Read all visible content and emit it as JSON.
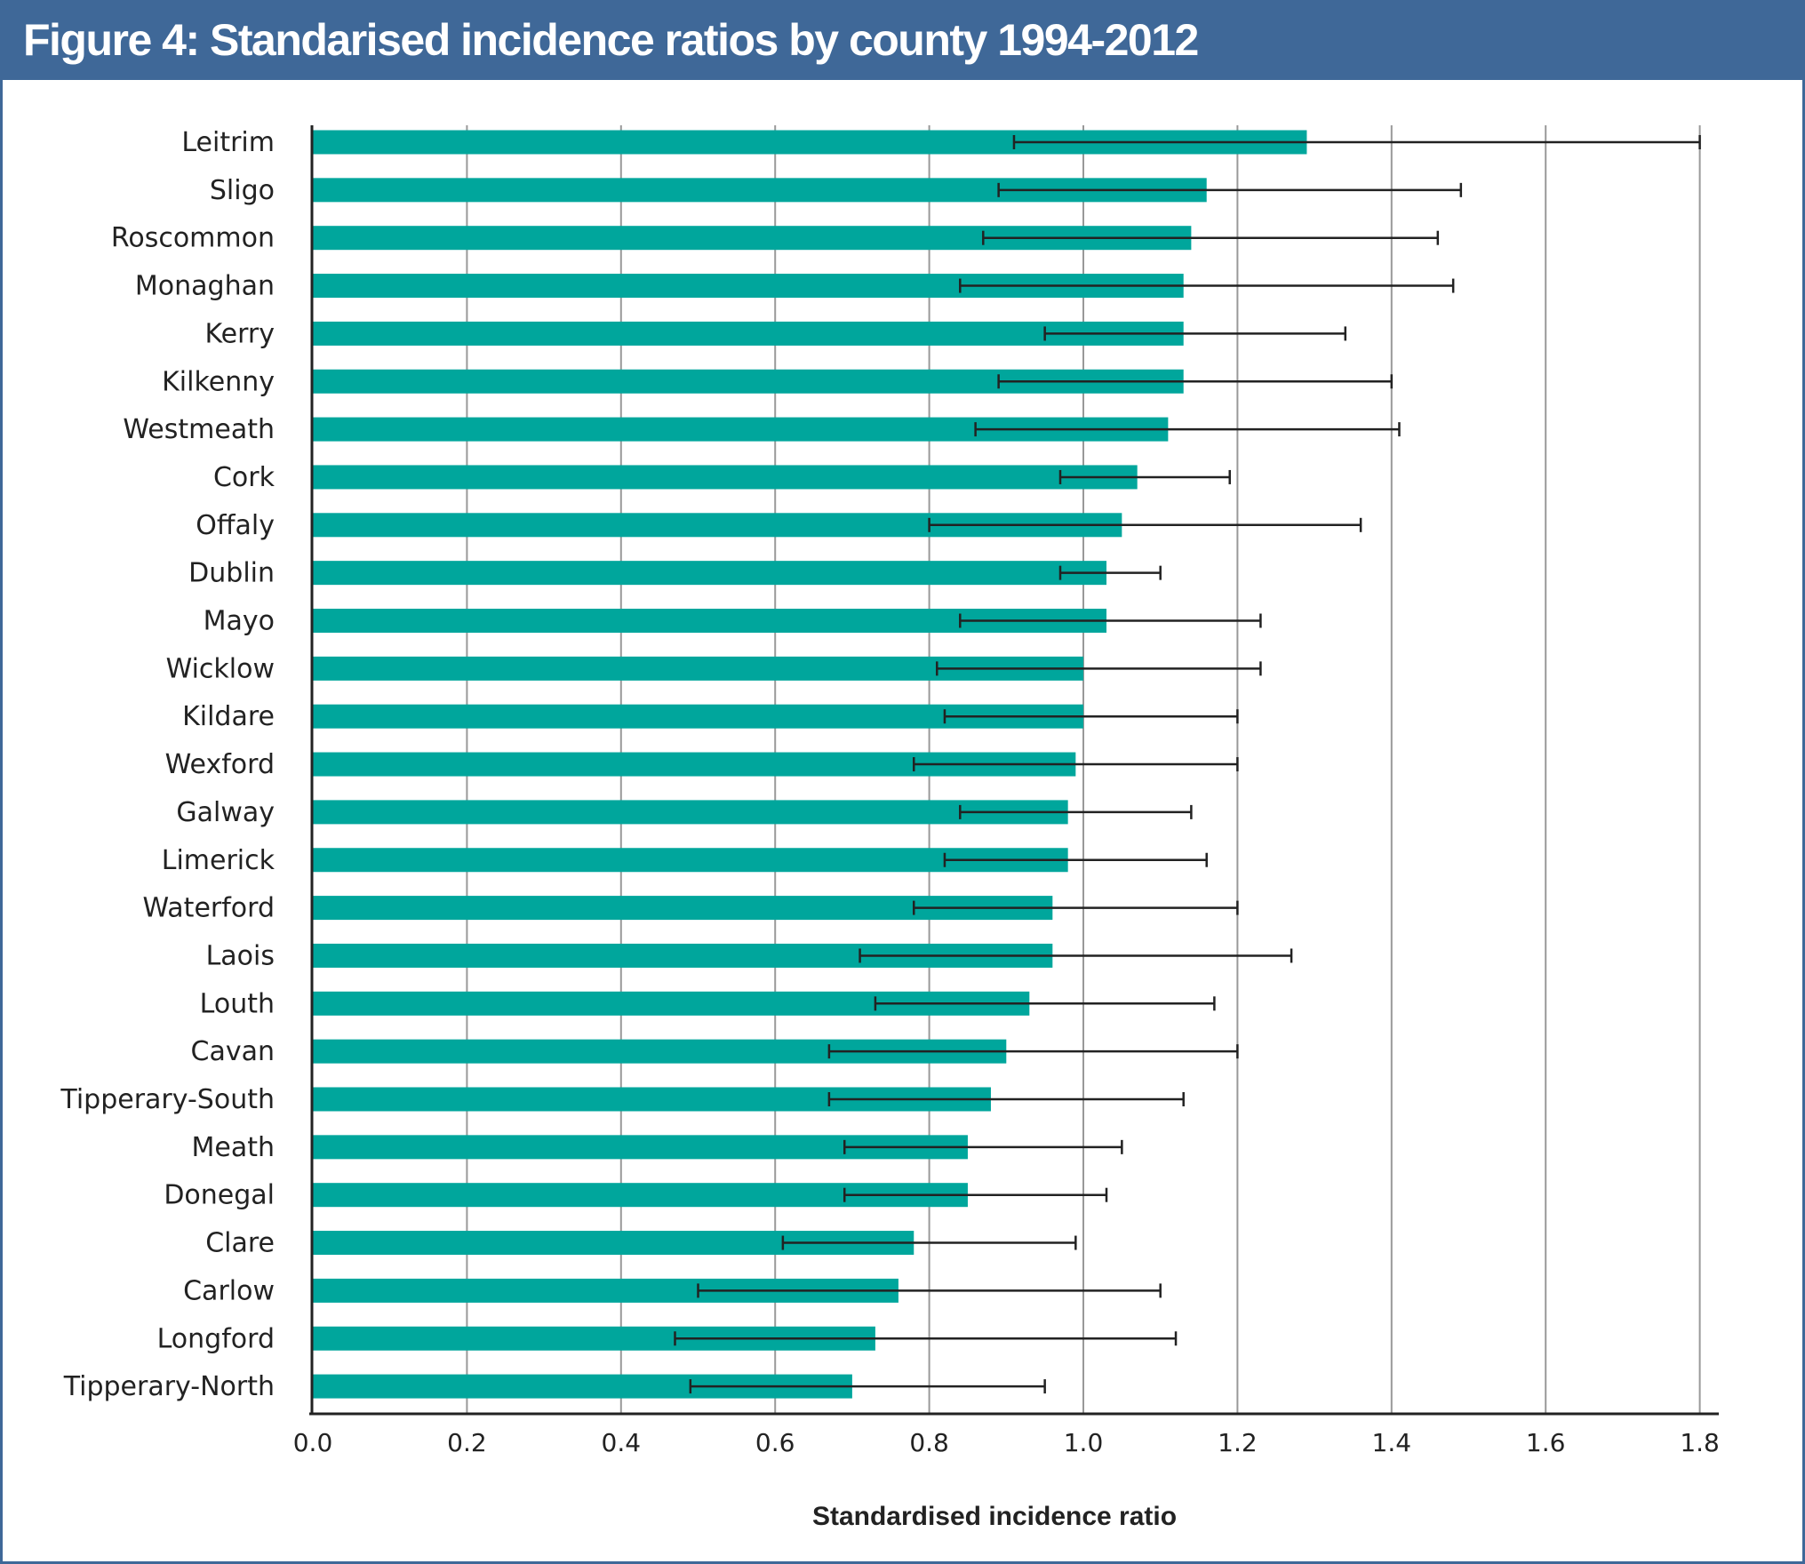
{
  "figure": {
    "title": "Figure 4: Standarised incidence ratios by county 1994-2012"
  },
  "colors": {
    "frame": "#3f6898",
    "bar": "#00a69c",
    "error_bar": "#222222",
    "grid": "#999999",
    "axis": "#222222"
  },
  "chart_data": {
    "type": "bar",
    "orientation": "horizontal",
    "title": "Figure 4: Standarised incidence ratios by county 1994-2012",
    "xlabel": "Standardised incidence ratio",
    "ylabel": "",
    "xlim": [
      0.0,
      1.8
    ],
    "x_ticks": [
      "0.0",
      "0.2",
      "0.4",
      "0.6",
      "0.8",
      "1.0",
      "1.2",
      "1.4",
      "1.6",
      "1.8"
    ],
    "x_tick_values": [
      0.0,
      0.2,
      0.4,
      0.6,
      0.8,
      1.0,
      1.2,
      1.4,
      1.6,
      1.8
    ],
    "grid": "vertical",
    "legend": "none",
    "error_bars": "95% confidence interval (lower, upper)",
    "categories": [
      "Leitrim",
      "Sligo",
      "Roscommon",
      "Monaghan",
      "Kerry",
      "Kilkenny",
      "Westmeath",
      "Cork",
      "Offaly",
      "Dublin",
      "Mayo",
      "Wicklow",
      "Kildare",
      "Wexford",
      "Galway",
      "Limerick",
      "Waterford",
      "Laois",
      "Louth",
      "Cavan",
      "Tipperary-South",
      "Meath",
      "Donegal",
      "Clare",
      "Carlow",
      "Longford",
      "Tipperary-North"
    ],
    "values": [
      1.29,
      1.16,
      1.14,
      1.13,
      1.13,
      1.13,
      1.11,
      1.07,
      1.05,
      1.03,
      1.03,
      1.0,
      1.0,
      0.99,
      0.98,
      0.98,
      0.96,
      0.96,
      0.93,
      0.9,
      0.88,
      0.85,
      0.85,
      0.78,
      0.76,
      0.73,
      0.7
    ],
    "ci_lower": [
      0.91,
      0.89,
      0.87,
      0.84,
      0.95,
      0.89,
      0.86,
      0.97,
      0.8,
      0.97,
      0.84,
      0.81,
      0.82,
      0.78,
      0.84,
      0.82,
      0.78,
      0.71,
      0.73,
      0.67,
      0.67,
      0.69,
      0.69,
      0.61,
      0.5,
      0.47,
      0.49
    ],
    "ci_upper": [
      1.8,
      1.49,
      1.46,
      1.48,
      1.34,
      1.4,
      1.41,
      1.19,
      1.36,
      1.1,
      1.23,
      1.23,
      1.2,
      1.2,
      1.14,
      1.16,
      1.2,
      1.27,
      1.17,
      1.2,
      1.13,
      1.05,
      1.03,
      0.99,
      1.1,
      1.12,
      0.95
    ]
  }
}
